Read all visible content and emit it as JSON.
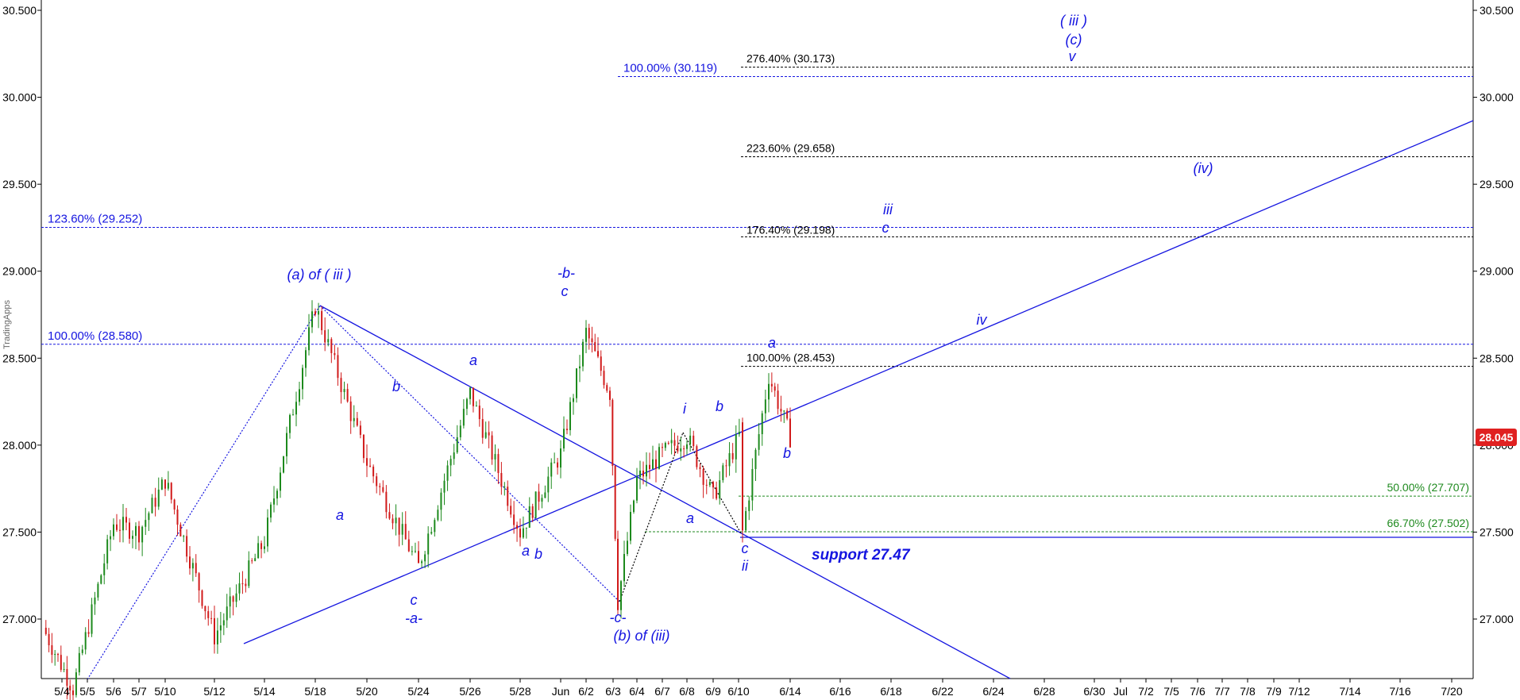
{
  "watermark": "TradingApps",
  "colors": {
    "wave": "#1515e0",
    "up": "#1d8a1d",
    "down": "#d11a1a",
    "price_badge": "#e02020",
    "fib_black": "#000000",
    "fib_green": "#1f8a1f"
  },
  "chart_data": {
    "type": "candlestick",
    "title": "",
    "ylim": [
      26.65,
      30.55
    ],
    "y_ticks": [
      "30.500",
      "30.000",
      "29.500",
      "29.000",
      "28.500",
      "28.000",
      "27.500",
      "27.000"
    ],
    "y_tick_values": [
      30.5,
      30.0,
      29.5,
      29.0,
      28.5,
      28.0,
      27.5,
      27.0
    ],
    "x_ticks": [
      "5/4",
      "5/5",
      "5/6",
      "5/7",
      "5/10",
      "5/12",
      "5/14",
      "5/18",
      "5/20",
      "5/24",
      "5/26",
      "5/28",
      "Jun",
      "6/2",
      "6/3",
      "6/4",
      "6/7",
      "6/8",
      "6/9",
      "6/10",
      "6/14",
      "6/16",
      "6/18",
      "6/22",
      "6/24",
      "6/28",
      "6/30",
      "Jul",
      "7/2",
      "7/5",
      "7/6",
      "7/7",
      "7/8",
      "7/9",
      "7/12",
      "7/14",
      "7/16",
      "7/20"
    ],
    "last_price": "28.045",
    "last_price_value": 28.045,
    "price_path": [
      [
        "5/4",
        26.95
      ],
      [
        "5/5",
        26.6
      ],
      [
        "5/6",
        27.55
      ],
      [
        "5/7",
        27.5
      ],
      [
        "5/10",
        27.8
      ],
      [
        "5/12",
        26.9
      ],
      [
        "5/14",
        27.45
      ],
      [
        "5/18",
        28.8
      ],
      [
        "5/20",
        27.9
      ],
      [
        "5/24",
        27.3
      ],
      [
        "5/26",
        28.3
      ],
      [
        "5/28",
        27.5
      ],
      [
        "Jun",
        27.95
      ],
      [
        "6/2",
        28.65
      ],
      [
        "6/3",
        28.3
      ],
      [
        "6/3",
        27.1
      ],
      [
        "6/4",
        27.8
      ],
      [
        "6/7",
        27.95
      ],
      [
        "6/8",
        28.05
      ],
      [
        "6/9",
        27.7
      ],
      [
        "6/10",
        28.1
      ],
      [
        "6/10",
        27.5
      ],
      [
        "6/14",
        28.4
      ],
      [
        "6/14",
        28.045
      ]
    ],
    "fib_levels": [
      {
        "label": "123.60% (29.252)",
        "value": 29.252,
        "color": "blue"
      },
      {
        "label": "100.00% (28.580)",
        "value": 28.58,
        "color": "blue"
      },
      {
        "label": "100.00% (30.119)",
        "value": 30.119,
        "color": "blue"
      },
      {
        "label": "276.40% (30.173)",
        "value": 30.173,
        "color": "black"
      },
      {
        "label": "223.60% (29.658)",
        "value": 29.658,
        "color": "black"
      },
      {
        "label": "176.40% (29.198)",
        "value": 29.198,
        "color": "black"
      },
      {
        "label": "100.00% (28.453)",
        "value": 28.453,
        "color": "black"
      },
      {
        "label": "50.00% (27.707)",
        "value": 27.707,
        "color": "green"
      },
      {
        "label": "66.70% (27.502)",
        "value": 27.502,
        "color": "green"
      }
    ],
    "support": {
      "label": "support 27.47",
      "value": 27.47
    },
    "wave_labels": [
      {
        "text": "(a) of ( iii )"
      },
      {
        "text": "-b-"
      },
      {
        "text": "c"
      },
      {
        "text": "a"
      },
      {
        "text": "b"
      },
      {
        "text": "a"
      },
      {
        "text": "c"
      },
      {
        "text": "-a-"
      },
      {
        "text": "a"
      },
      {
        "text": "b"
      },
      {
        "text": "-c-"
      },
      {
        "text": "(b) of (iii)"
      },
      {
        "text": "i"
      },
      {
        "text": "a"
      },
      {
        "text": "b"
      },
      {
        "text": "c"
      },
      {
        "text": "ii"
      },
      {
        "text": "a"
      },
      {
        "text": "b"
      },
      {
        "text": "iii"
      },
      {
        "text": "c"
      },
      {
        "text": "iv"
      },
      {
        "text": "(iv)"
      },
      {
        "text": "( iii )"
      },
      {
        "text": "(c)"
      },
      {
        "text": "v"
      }
    ]
  }
}
